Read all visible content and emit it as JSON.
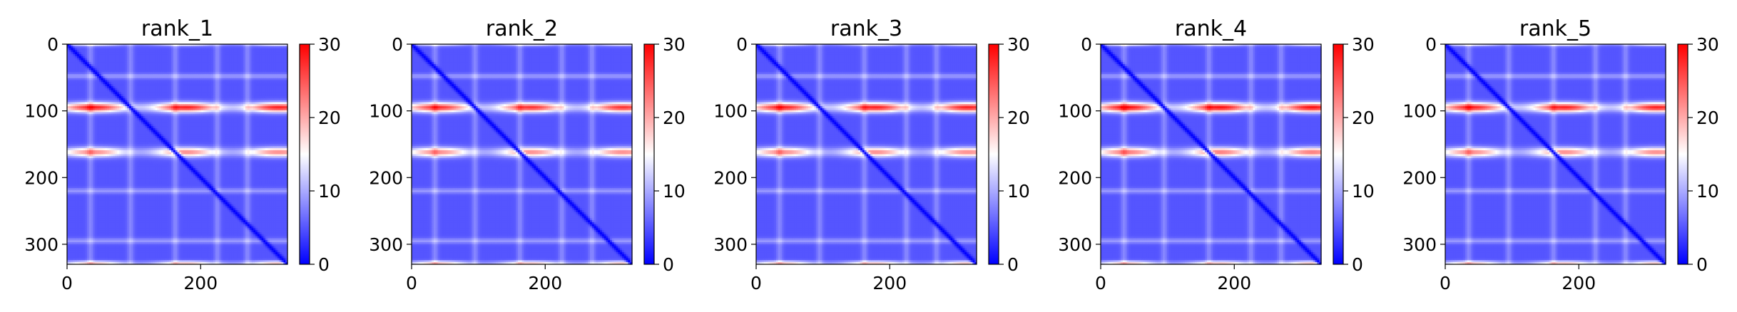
{
  "chart_data": [
    {
      "type": "heatmap",
      "title": "rank_1",
      "xticks": [
        0,
        200
      ],
      "yticks": [
        0,
        100,
        200,
        300
      ],
      "xlim": [
        0,
        330
      ],
      "ylim": [
        330,
        0
      ],
      "colorbar": {
        "range": [
          0,
          30
        ],
        "ticks": [
          0,
          10,
          20,
          30
        ],
        "colormap": "bwr"
      },
      "diagonal_value": 0,
      "background_value": 5,
      "bright_rows": [
        {
          "index": 95,
          "value": 28
        },
        {
          "index": 162,
          "value": 22
        },
        {
          "index": 0,
          "value": 15
        },
        {
          "index": 328,
          "value": 18
        }
      ],
      "light_rows": [
        48,
        220,
        295
      ],
      "light_cols": [
        35,
        95,
        162,
        225,
        270
      ]
    },
    {
      "type": "heatmap",
      "title": "rank_2",
      "xticks": [
        0,
        200
      ],
      "yticks": [
        0,
        100,
        200,
        300
      ],
      "xlim": [
        0,
        330
      ],
      "ylim": [
        330,
        0
      ],
      "colorbar": {
        "range": [
          0,
          30
        ],
        "ticks": [
          0,
          10,
          20,
          30
        ],
        "colormap": "bwr"
      },
      "diagonal_value": 0,
      "background_value": 5,
      "bright_rows": [
        {
          "index": 95,
          "value": 27
        },
        {
          "index": 162,
          "value": 22
        },
        {
          "index": 0,
          "value": 14
        },
        {
          "index": 328,
          "value": 18
        }
      ],
      "light_rows": [
        48,
        220,
        295
      ],
      "light_cols": [
        35,
        95,
        162,
        225,
        270
      ]
    },
    {
      "type": "heatmap",
      "title": "rank_3",
      "xticks": [
        0,
        200
      ],
      "yticks": [
        0,
        100,
        200,
        300
      ],
      "xlim": [
        0,
        330
      ],
      "ylim": [
        330,
        0
      ],
      "colorbar": {
        "range": [
          0,
          30
        ],
        "ticks": [
          0,
          10,
          20,
          30
        ],
        "colormap": "bwr"
      },
      "diagonal_value": 0,
      "background_value": 5,
      "bright_rows": [
        {
          "index": 95,
          "value": 28
        },
        {
          "index": 162,
          "value": 22
        },
        {
          "index": 0,
          "value": 15
        },
        {
          "index": 328,
          "value": 18
        }
      ],
      "light_rows": [
        48,
        220,
        295
      ],
      "light_cols": [
        35,
        95,
        162,
        225,
        270
      ]
    },
    {
      "type": "heatmap",
      "title": "rank_4",
      "xticks": [
        0,
        200
      ],
      "yticks": [
        0,
        100,
        200,
        300
      ],
      "xlim": [
        0,
        330
      ],
      "ylim": [
        330,
        0
      ],
      "colorbar": {
        "range": [
          0,
          30
        ],
        "ticks": [
          0,
          10,
          20,
          30
        ],
        "colormap": "bwr"
      },
      "diagonal_value": 0,
      "background_value": 5,
      "bright_rows": [
        {
          "index": 95,
          "value": 29
        },
        {
          "index": 162,
          "value": 23
        },
        {
          "index": 0,
          "value": 15
        },
        {
          "index": 328,
          "value": 18
        }
      ],
      "light_rows": [
        48,
        220,
        295
      ],
      "light_cols": [
        35,
        95,
        162,
        225,
        270
      ]
    },
    {
      "type": "heatmap",
      "title": "rank_5",
      "xticks": [
        0,
        200
      ],
      "yticks": [
        0,
        100,
        200,
        300
      ],
      "xlim": [
        0,
        330
      ],
      "ylim": [
        330,
        0
      ],
      "colorbar": {
        "range": [
          0,
          30
        ],
        "ticks": [
          0,
          10,
          20,
          30
        ],
        "colormap": "bwr"
      },
      "diagonal_value": 0,
      "background_value": 5,
      "bright_rows": [
        {
          "index": 95,
          "value": 28
        },
        {
          "index": 162,
          "value": 22
        },
        {
          "index": 0,
          "value": 15
        },
        {
          "index": 328,
          "value": 18
        }
      ],
      "light_rows": [
        48,
        220,
        295
      ],
      "light_cols": [
        35,
        95,
        162,
        225,
        270
      ]
    }
  ]
}
